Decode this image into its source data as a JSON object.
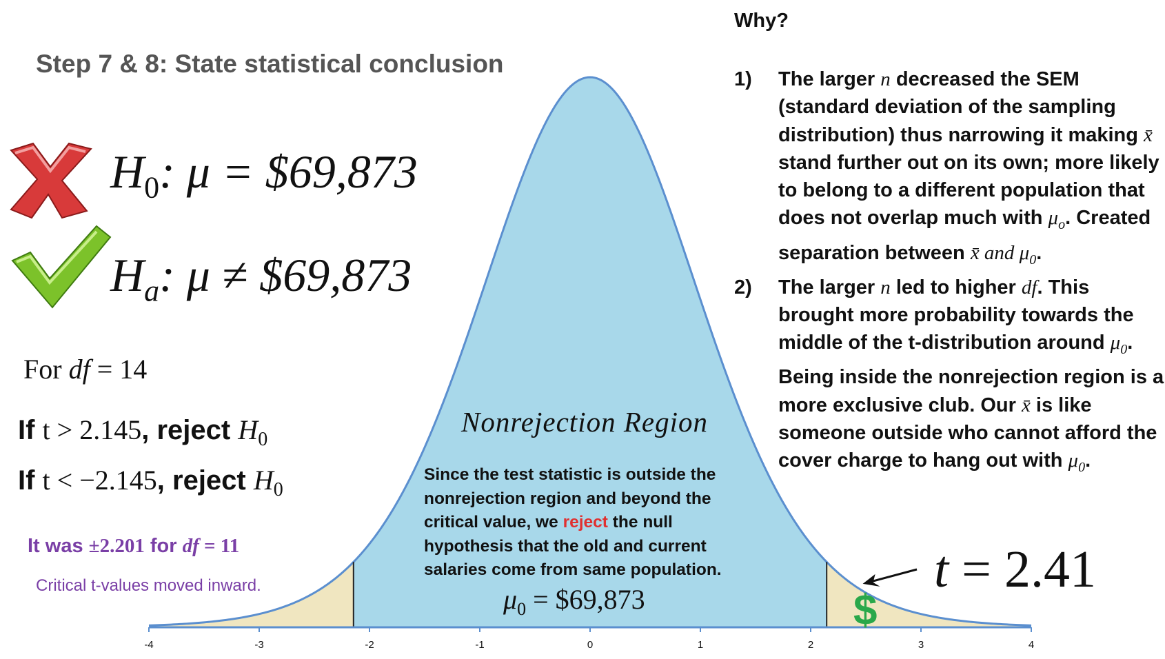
{
  "slide": {
    "title": "Step 7 & 8: State statistical conclusion",
    "why": "Why?",
    "h0": {
      "symbol": "H",
      "sub": "0",
      "rest": ": μ = $69,873"
    },
    "ha": {
      "symbol": "H",
      "sub": "a",
      "rest": ": μ ≠ $69,873"
    },
    "df_line": {
      "prefix": "For ",
      "var": "df",
      "rest": " = 14"
    },
    "cond1": {
      "if": "If ",
      "expr": "t > 2.145",
      "reject": ", reject ",
      "H": "H",
      "sub": "0"
    },
    "cond2": {
      "if": "If ",
      "expr": "t < −2.145",
      "reject": ", reject ",
      "H": "H",
      "sub": "0"
    },
    "prev": {
      "text1": "It was ",
      "value": "±2.201",
      "text2": " for ",
      "var": "df",
      "rest": " = 11"
    },
    "moved": "Critical t-values moved inward.",
    "region_label": "Nonrejection Region",
    "explain": {
      "part1": "Since the test statistic is outside the nonrejection region and beyond the critical value, we ",
      "reject": "reject",
      "part2": " the null hypothesis that the old and current salaries come from same population."
    },
    "mu0": {
      "symbol": "μ",
      "sub": "0",
      "rest": " = $69,873"
    },
    "tstat": {
      "var": "t",
      "rest": " = 2.41"
    },
    "dollar": "$",
    "reasons": [
      {
        "num": "1)",
        "p1": "The larger ",
        "m1": "n",
        "p2": " decreased the SEM (standard deviation of the sampling distribution) thus narrowing it making ",
        "m2": "x̄",
        "p3": " stand further out on its own; more likely to belong to a different population that does not overlap much with ",
        "m3": "μ",
        "m3sub": "o",
        "p4": ". Created separation between ",
        "m4": "x̄ and μ",
        "m4sub": "0",
        "p5": "."
      },
      {
        "num": "2)",
        "p1": "The larger ",
        "m1": "n",
        "p2": " led to higher ",
        "m2": "df",
        "p3": ". This brought more probability towards the middle of the t-distribution around ",
        "m3": "μ",
        "m3sub": "0",
        "p4": ". Being inside the nonrejection region is a more exclusive club. Our ",
        "m4": "x̄",
        "p5": " is like someone outside who cannot afford the cover charge to hang out with ",
        "m5": "μ",
        "m5sub": "0",
        "p6": "."
      }
    ]
  },
  "chart_data": {
    "type": "area",
    "distribution": "t",
    "df": 14,
    "xlim": [
      -4,
      4
    ],
    "x_ticks": [
      "-4",
      "-3",
      "-2",
      "-1",
      "0",
      "1",
      "2",
      "3",
      "4"
    ],
    "critical_values": [
      -2.145,
      2.145
    ],
    "test_statistic": 2.41,
    "colors": {
      "center": "#a8d8ea",
      "tails": "#f0e6c0",
      "curve": "#5b8fcf",
      "marker": "#2aa84a"
    }
  }
}
